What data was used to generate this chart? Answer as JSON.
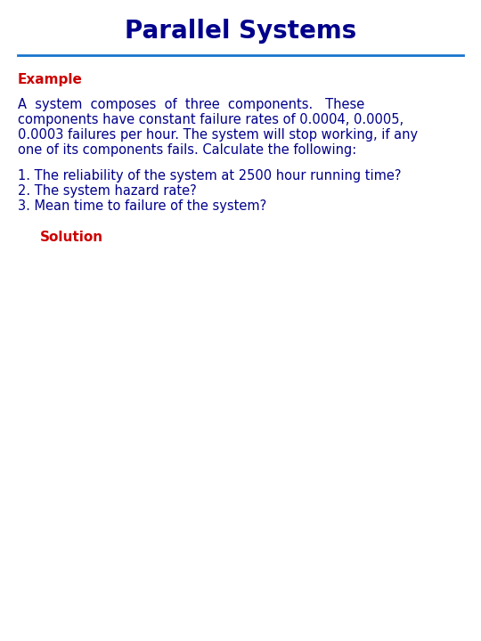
{
  "title": "Parallel Systems",
  "title_color": "#00008B",
  "title_fontsize": 20,
  "title_bold": true,
  "separator_color": "#1874CD",
  "example_label": "Example",
  "example_color": "#CC0000",
  "example_fontsize": 11,
  "example_bold": true,
  "body_color": "#00008B",
  "body_fontsize": 10.5,
  "paragraph1_lines": [
    "A  system  composes  of  three  components.   These",
    "components have constant failure rates of 0.0004, 0.0005,",
    "0.0003 failures per hour. The system will stop working, if any",
    "one of its components fails. Calculate the following:"
  ],
  "numbered_items": [
    "1. The reliability of the system at 2500 hour running time?",
    "2. The system hazard rate?",
    "3. Mean time to failure of the system?"
  ],
  "solution_label": "Solution",
  "solution_color": "#CC0000",
  "solution_fontsize": 11,
  "solution_bold": true,
  "background_color": "#FFFFFF"
}
